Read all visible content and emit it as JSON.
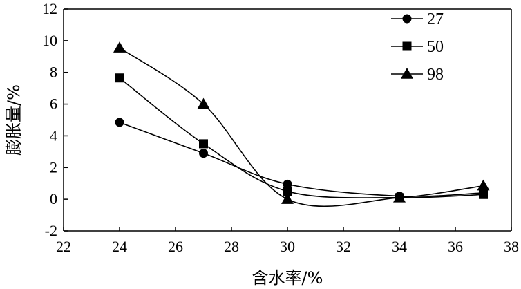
{
  "chart_data": {
    "type": "line",
    "xlabel": "含水率/%",
    "ylabel": "膨胀量/%",
    "xlim": [
      22,
      38
    ],
    "ylim": [
      -2,
      12
    ],
    "xticks": [
      22,
      24,
      26,
      28,
      30,
      32,
      34,
      36,
      38
    ],
    "yticks": [
      -2,
      0,
      2,
      4,
      6,
      8,
      10,
      12
    ],
    "xtick_labels": [
      "22",
      "24",
      "26",
      "28",
      "30",
      "32",
      "34",
      "36",
      "38"
    ],
    "ytick_labels": [
      "-2",
      "0",
      "2",
      "4",
      "6",
      "8",
      "10",
      "12"
    ],
    "grid": false,
    "legend_position": "top-right",
    "smooth": true,
    "x": [
      24,
      27,
      30,
      34,
      37
    ],
    "series": [
      {
        "name": "27",
        "marker": "circle",
        "values": [
          4.85,
          2.9,
          0.95,
          0.2,
          0.4
        ]
      },
      {
        "name": "50",
        "marker": "square",
        "values": [
          7.65,
          3.5,
          0.5,
          0.1,
          0.3
        ]
      },
      {
        "name": "98",
        "marker": "triangle",
        "values": [
          9.55,
          6.0,
          0.0,
          0.1,
          0.85
        ]
      }
    ]
  }
}
